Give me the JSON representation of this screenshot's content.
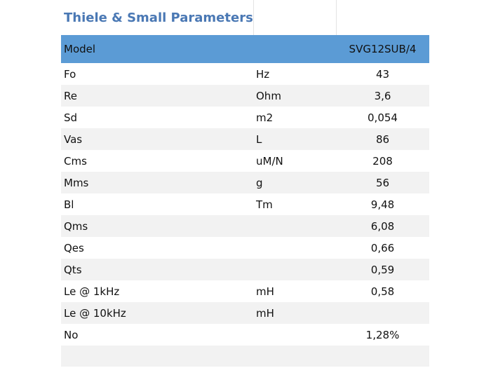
{
  "title": "Thiele & Small Parameters",
  "header": {
    "label": "Model",
    "model": "SVG12SUB/4"
  },
  "rows": [
    {
      "name": "Fo",
      "unit": "Hz",
      "value": "43"
    },
    {
      "name": "Re",
      "unit": "Ohm",
      "value": "3,6"
    },
    {
      "name": "Sd",
      "unit": "m2",
      "value": "0,054"
    },
    {
      "name": "Vas",
      "unit": "L",
      "value": "86"
    },
    {
      "name": "Cms",
      "unit": "uM/N",
      "value": "208"
    },
    {
      "name": "Mms",
      "unit": "g",
      "value": "56"
    },
    {
      "name": "Bl",
      "unit": "Tm",
      "value": "9,48"
    },
    {
      "name": "Qms",
      "unit": "",
      "value": "6,08"
    },
    {
      "name": "Qes",
      "unit": "",
      "value": "0,66"
    },
    {
      "name": "Qts",
      "unit": "",
      "value": "0,59"
    },
    {
      "name": "Le @ 1kHz",
      "unit": "mH",
      "value": "0,58"
    },
    {
      "name": "Le @ 10kHz",
      "unit": "mH",
      "value": ""
    },
    {
      "name": "No",
      "unit": "",
      "value": "1,28%"
    }
  ]
}
